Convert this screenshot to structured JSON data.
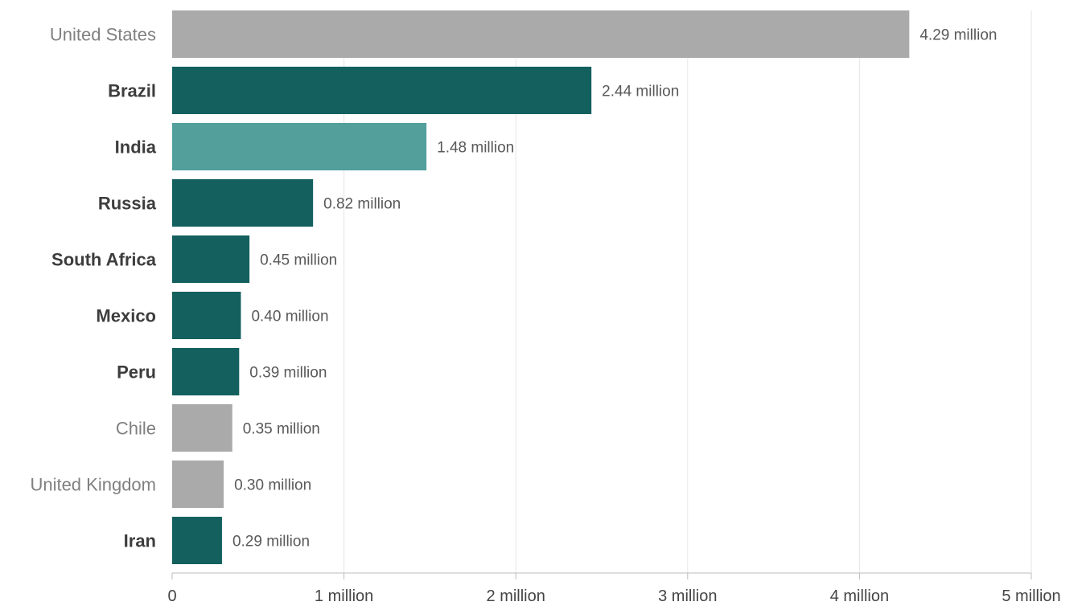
{
  "chart_data": {
    "type": "bar",
    "orientation": "horizontal",
    "categories": [
      "United States",
      "Brazil",
      "India",
      "Russia",
      "South Africa",
      "Mexico",
      "Peru",
      "Chile",
      "United Kingdom",
      "Iran"
    ],
    "values": [
      4.29,
      2.44,
      1.48,
      0.82,
      0.45,
      0.4,
      0.39,
      0.35,
      0.3,
      0.29
    ],
    "value_labels": [
      "4.29 million",
      "2.44 million",
      "1.48 million",
      "0.82 million",
      "0.45 million",
      "0.40 million",
      "0.39 million",
      "0.35 million",
      "0.30 million",
      "0.29 million"
    ],
    "highlighted": [
      false,
      true,
      true,
      true,
      true,
      true,
      true,
      false,
      false,
      true
    ],
    "bar_colors": [
      "#aaaaaa",
      "#13605e",
      "#529f9c",
      "#13605e",
      "#13605e",
      "#13605e",
      "#13605e",
      "#aaaaaa",
      "#aaaaaa",
      "#13605e"
    ],
    "label_colors": {
      "highlighted": "#3d3d3d",
      "muted": "#808080"
    },
    "xlim": [
      0,
      5
    ],
    "x_ticks": [
      0,
      1,
      2,
      3,
      4,
      5
    ],
    "x_tick_labels": [
      "0",
      "1 million",
      "2 million",
      "3 million",
      "4 million",
      "5 million"
    ],
    "grid": "vertical",
    "title": "",
    "xlabel": "",
    "ylabel": ""
  }
}
